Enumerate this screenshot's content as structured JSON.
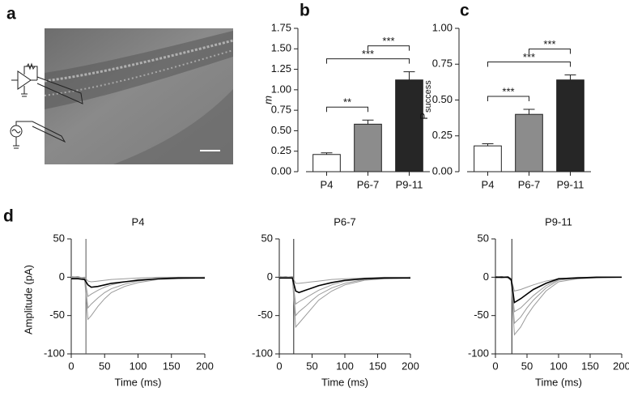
{
  "image_panel": {
    "label": "a"
  },
  "chart_data": [
    {
      "type": "bar",
      "label": "b",
      "ylabel": "m",
      "categories": [
        "P4",
        "P6-7",
        "P9-11"
      ],
      "values": [
        0.21,
        0.58,
        1.12
      ],
      "errors": [
        0.02,
        0.05,
        0.1
      ],
      "colors": [
        "#ffffff",
        "#8c8c8c",
        "#262626"
      ],
      "ylim": [
        0,
        1.75
      ],
      "yticks": [
        {
          "value": 0,
          "label": "0.00"
        },
        {
          "value": 0.25,
          "label": "0.25"
        },
        {
          "value": 0.5,
          "label": "0.50"
        },
        {
          "value": 0.75,
          "label": "0.75"
        },
        {
          "value": 1,
          "label": "1.00"
        },
        {
          "value": 1.25,
          "label": "1.25"
        },
        {
          "value": 1.5,
          "label": "1.50"
        },
        {
          "value": 1.75,
          "label": "1.75"
        }
      ],
      "significance": [
        {
          "from": 0,
          "to": 1,
          "label": "**"
        },
        {
          "from": 0,
          "to": 2,
          "label": "***"
        },
        {
          "from": 1,
          "to": 2,
          "label": "***"
        }
      ]
    },
    {
      "type": "bar",
      "label": "c",
      "ylabel": "P",
      "ylabel_sub": "success",
      "categories": [
        "P4",
        "P6-7",
        "P9-11"
      ],
      "values": [
        0.18,
        0.4,
        0.64
      ],
      "errors": [
        0.015,
        0.035,
        0.035
      ],
      "colors": [
        "#ffffff",
        "#8c8c8c",
        "#262626"
      ],
      "ylim": [
        0,
        1
      ],
      "yticks": [
        {
          "value": 0,
          "label": "0.00"
        },
        {
          "value": 0.25,
          "label": "0.25"
        },
        {
          "value": 0.5,
          "label": "0.50"
        },
        {
          "value": 0.75,
          "label": "0.75"
        },
        {
          "value": 1,
          "label": "1.00"
        }
      ],
      "significance": [
        {
          "from": 0,
          "to": 1,
          "label": "***"
        },
        {
          "from": 0,
          "to": 2,
          "label": "***"
        },
        {
          "from": 1,
          "to": 2,
          "label": "***"
        }
      ]
    },
    {
      "type": "line",
      "label": "d",
      "title": "P4",
      "xlabel": "Time (ms)",
      "ylabel": "Amplitude (pA)",
      "x": [
        0,
        10,
        20,
        25,
        30,
        40,
        50,
        60,
        80,
        100,
        130,
        160,
        200
      ],
      "xlim": [
        0,
        200
      ],
      "xticks": [
        0,
        50,
        100,
        150,
        200
      ],
      "ylim": [
        -100,
        50
      ],
      "yticks": [
        -100,
        -50,
        0,
        50
      ],
      "series": [
        {
          "color": "#555555",
          "x": [
            22,
            22,
            22
          ],
          "values": [
            50,
            -100,
            -5
          ]
        },
        {
          "color": "#9a9a9a",
          "values": [
            0,
            1,
            -2,
            -55,
            -50,
            -38,
            -28,
            -20,
            -12,
            -7,
            -3,
            -2,
            -1
          ]
        },
        {
          "color": "#9a9a9a",
          "values": [
            1,
            0,
            -1,
            -40,
            -35,
            -27,
            -20,
            -15,
            -9,
            -5,
            -2,
            -1,
            0
          ]
        },
        {
          "color": "#9a9a9a",
          "values": [
            -1,
            0,
            -1,
            -25,
            -22,
            -17,
            -13,
            -10,
            -6,
            -3,
            -2,
            0,
            0
          ]
        },
        {
          "color": "#9a9a9a",
          "values": [
            0,
            -1,
            0,
            -5,
            -6,
            -5,
            -4,
            -3,
            -2,
            -1,
            0,
            0,
            0
          ]
        },
        {
          "color": "#000000",
          "values": [
            -2,
            -2,
            -3,
            -10,
            -13,
            -12,
            -10,
            -8,
            -6,
            -4,
            -2,
            -1,
            -1
          ]
        }
      ]
    },
    {
      "type": "line",
      "title": "P6-7",
      "xlabel": "Time (ms)",
      "x": [
        0,
        10,
        20,
        25,
        30,
        40,
        50,
        60,
        80,
        100,
        130,
        160,
        200
      ],
      "xlim": [
        0,
        200
      ],
      "xticks": [
        0,
        50,
        100,
        150,
        200
      ],
      "ylim": [
        -100,
        50
      ],
      "yticks": [
        -100,
        -50,
        0,
        50
      ],
      "series": [
        {
          "color": "#222222",
          "x": [
            22,
            22,
            22
          ],
          "values": [
            50,
            -100,
            -5
          ]
        },
        {
          "color": "#9a9a9a",
          "values": [
            0,
            1,
            -1,
            -65,
            -60,
            -50,
            -40,
            -30,
            -18,
            -10,
            -4,
            -2,
            -1
          ]
        },
        {
          "color": "#9a9a9a",
          "values": [
            1,
            0,
            0,
            -50,
            -45,
            -38,
            -30,
            -23,
            -14,
            -8,
            -3,
            -1,
            0
          ]
        },
        {
          "color": "#9a9a9a",
          "values": [
            0,
            -1,
            0,
            -35,
            -32,
            -27,
            -22,
            -17,
            -10,
            -5,
            -2,
            -1,
            0
          ]
        },
        {
          "color": "#9a9a9a",
          "values": [
            -1,
            0,
            1,
            -8,
            -8,
            -7,
            -6,
            -5,
            -3,
            -2,
            -1,
            0,
            0
          ]
        },
        {
          "color": "#000000",
          "values": [
            -1,
            -1,
            -1,
            -18,
            -20,
            -17,
            -14,
            -11,
            -7,
            -4,
            -2,
            -1,
            -1
          ]
        }
      ]
    },
    {
      "type": "line",
      "title": "P9-11",
      "xlabel": "Time (ms)",
      "x": [
        0,
        10,
        20,
        25,
        30,
        40,
        50,
        60,
        80,
        100,
        130,
        160,
        200
      ],
      "xlim": [
        0,
        200
      ],
      "xticks": [
        0,
        50,
        100,
        150,
        200
      ],
      "ylim": [
        -100,
        50
      ],
      "yticks": [
        -100,
        -50,
        0,
        50
      ],
      "series": [
        {
          "color": "#222222",
          "x": [
            26,
            26,
            26
          ],
          "values": [
            50,
            -100,
            -5
          ]
        },
        {
          "color": "#9a9a9a",
          "values": [
            0,
            1,
            -1,
            -5,
            -75,
            -65,
            -50,
            -38,
            -18,
            -6,
            -2,
            -1,
            0
          ]
        },
        {
          "color": "#9a9a9a",
          "values": [
            1,
            0,
            0,
            -4,
            -60,
            -52,
            -40,
            -30,
            -14,
            -4,
            -1,
            0,
            0
          ]
        },
        {
          "color": "#9a9a9a",
          "values": [
            0,
            -1,
            0,
            -3,
            -45,
            -40,
            -32,
            -24,
            -11,
            -3,
            -1,
            0,
            0
          ]
        },
        {
          "color": "#9a9a9a",
          "values": [
            -1,
            0,
            1,
            -2,
            -18,
            -16,
            -13,
            -10,
            -5,
            -2,
            0,
            0,
            0
          ]
        },
        {
          "color": "#000000",
          "values": [
            0,
            0,
            0,
            -3,
            -33,
            -28,
            -22,
            -16,
            -8,
            -2,
            -1,
            0,
            0
          ]
        }
      ]
    }
  ]
}
